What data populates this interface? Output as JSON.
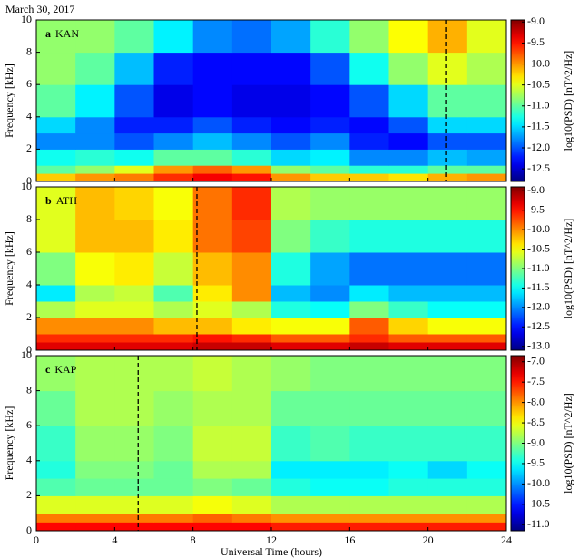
{
  "chart_data": [
    {
      "type": "heatmap",
      "title": "March 30, 2017",
      "panel_letter": "a",
      "station": "KAN",
      "ylabel": "Frequency [kHz]",
      "colorbar_label": "log10(PSD) [nT^2/Hz]",
      "colormap": "jet",
      "xbins": [
        0,
        2,
        4,
        6,
        8,
        10,
        12,
        14,
        16,
        18,
        20,
        22,
        24
      ],
      "ybins": [
        0,
        0.5,
        1,
        2,
        3,
        4,
        6,
        8,
        10
      ],
      "xlim": [
        0,
        24
      ],
      "ylim": [
        0,
        10
      ],
      "yticks": [
        0,
        2,
        4,
        6,
        8,
        10
      ],
      "clim": [
        -12.8,
        -8.95
      ],
      "cticks": [
        {
          "value": -9,
          "label": "-9.0"
        },
        {
          "value": -9.5,
          "label": "-9.5"
        },
        {
          "value": -10,
          "label": "-10.0"
        },
        {
          "value": -10.5,
          "label": "-10.5"
        },
        {
          "value": -11,
          "label": "-11.0"
        },
        {
          "value": -11.5,
          "label": "-11.5"
        },
        {
          "value": -12,
          "label": "-12.0"
        },
        {
          "value": -12.5,
          "label": "-12.5"
        }
      ],
      "marker_x": 20.9,
      "values": [
        [
          -10.2,
          -10.0,
          -9.9,
          -9.6,
          -9.4,
          -9.5,
          -10.0,
          -10.2,
          -10.2,
          -10.3,
          -10.1,
          -10.0
        ],
        [
          -11.0,
          -10.8,
          -10.5,
          -10.0,
          -9.8,
          -10.0,
          -10.8,
          -11.0,
          -11.2,
          -11.2,
          -11.0,
          -11.0
        ],
        [
          -11.3,
          -11.2,
          -11.3,
          -11.0,
          -11.0,
          -11.2,
          -11.5,
          -11.4,
          -11.8,
          -11.8,
          -11.6,
          -11.7
        ],
        [
          -11.8,
          -11.8,
          -12.0,
          -11.8,
          -11.6,
          -11.8,
          -12.0,
          -11.8,
          -12.2,
          -12.3,
          -12.0,
          -12.0
        ],
        [
          -11.5,
          -11.8,
          -12.2,
          -12.2,
          -12.0,
          -12.2,
          -12.3,
          -12.2,
          -12.3,
          -12.0,
          -11.5,
          -11.5
        ],
        [
          -11.0,
          -11.4,
          -12.0,
          -12.4,
          -12.3,
          -12.4,
          -12.4,
          -12.3,
          -12.0,
          -11.5,
          -11.0,
          -11.0
        ],
        [
          -10.8,
          -11.0,
          -11.6,
          -12.2,
          -12.3,
          -12.3,
          -12.3,
          -12.0,
          -11.3,
          -10.8,
          -10.5,
          -10.7
        ],
        [
          -10.8,
          -10.8,
          -11.0,
          -11.4,
          -11.8,
          -11.9,
          -11.7,
          -11.2,
          -10.8,
          -10.4,
          -10.1,
          -10.5
        ]
      ]
    },
    {
      "type": "heatmap",
      "panel_letter": "b",
      "station": "ATH",
      "ylabel": "Frequency [kHz]",
      "colorbar_label": "log10(PSD) [nT^2/Hz]",
      "colormap": "jet",
      "xbins": [
        0,
        2,
        4,
        6,
        8,
        10,
        12,
        14,
        16,
        18,
        20,
        22,
        24
      ],
      "ybins": [
        0,
        0.5,
        1,
        2,
        3,
        4,
        6,
        8,
        10
      ],
      "xlim": [
        0,
        24
      ],
      "ylim": [
        0,
        10
      ],
      "yticks": [
        0,
        2,
        4,
        6,
        8,
        10
      ],
      "clim": [
        -13.1,
        -8.9
      ],
      "cticks": [
        {
          "value": -9,
          "label": "-9.0"
        },
        {
          "value": -9.5,
          "label": "-9.5"
        },
        {
          "value": -10,
          "label": "-10.0"
        },
        {
          "value": -10.5,
          "label": "-10.5"
        },
        {
          "value": -11,
          "label": "-11.0"
        },
        {
          "value": -11.5,
          "label": "-11.5"
        },
        {
          "value": -12,
          "label": "-12.0"
        },
        {
          "value": -12.5,
          "label": "-12.5"
        },
        {
          "value": -13,
          "label": "-13.0"
        }
      ],
      "marker_x": 8.2,
      "values": [
        [
          -9.3,
          -9.3,
          -9.3,
          -9.3,
          -9.2,
          -9.2,
          -9.3,
          -9.3,
          -9.2,
          -9.3,
          -9.3,
          -9.3
        ],
        [
          -9.6,
          -9.6,
          -9.6,
          -9.6,
          -9.5,
          -9.6,
          -9.8,
          -9.8,
          -9.6,
          -9.8,
          -9.8,
          -9.8
        ],
        [
          -10.0,
          -10.0,
          -10.0,
          -10.2,
          -10.2,
          -10.4,
          -10.5,
          -10.5,
          -9.8,
          -10.3,
          -10.5,
          -10.5
        ],
        [
          -10.8,
          -10.6,
          -10.6,
          -10.8,
          -10.6,
          -10.8,
          -11.4,
          -11.5,
          -11.0,
          -11.3,
          -11.5,
          -11.5
        ],
        [
          -11.6,
          -10.8,
          -10.7,
          -11.2,
          -10.4,
          -10.0,
          -11.8,
          -12.0,
          -11.6,
          -11.8,
          -11.8,
          -11.8
        ],
        [
          -11.0,
          -10.5,
          -10.4,
          -10.7,
          -10.2,
          -10.0,
          -11.4,
          -11.9,
          -12.1,
          -12.1,
          -12.1,
          -12.1
        ],
        [
          -10.6,
          -10.2,
          -10.2,
          -10.4,
          -9.9,
          -9.7,
          -11.0,
          -11.3,
          -11.4,
          -11.4,
          -11.4,
          -11.4
        ],
        [
          -10.6,
          -10.2,
          -10.3,
          -10.5,
          -9.9,
          -9.6,
          -10.8,
          -10.9,
          -10.9,
          -10.9,
          -10.9,
          -10.9
        ]
      ]
    },
    {
      "type": "heatmap",
      "panel_letter": "c",
      "station": "KAP",
      "ylabel": "Frequency [kHz]",
      "colorbar_label": "log10(PSD) [nT^2/Hz]",
      "colormap": "jet",
      "xlabel": "Universal Time (hours)",
      "xticks": [
        0,
        4,
        8,
        12,
        16,
        20,
        24
      ],
      "xbins": [
        0,
        2,
        4,
        6,
        8,
        10,
        12,
        14,
        16,
        18,
        20,
        22,
        24
      ],
      "ybins": [
        0,
        0.5,
        1,
        2,
        3,
        4,
        6,
        8,
        10
      ],
      "xlim": [
        0,
        24
      ],
      "ylim": [
        0,
        10
      ],
      "yticks": [
        0,
        2,
        4,
        6,
        8,
        10
      ],
      "clim": [
        -11.15,
        -6.85
      ],
      "cticks": [
        {
          "value": -7,
          "label": "-7.0"
        },
        {
          "value": -7.5,
          "label": "-7.5"
        },
        {
          "value": -8,
          "label": "-8.0"
        },
        {
          "value": -8.5,
          "label": "-8.5"
        },
        {
          "value": -9,
          "label": "-9.0"
        },
        {
          "value": -9.5,
          "label": "-9.5"
        },
        {
          "value": -10,
          "label": "-10.0"
        },
        {
          "value": -10.5,
          "label": "-10.5"
        },
        {
          "value": -11,
          "label": "-11.0"
        }
      ],
      "marker_x": 5.2,
      "values": [
        [
          -7.4,
          -7.4,
          -7.4,
          -7.4,
          -7.4,
          -7.4,
          -7.5,
          -7.5,
          -7.5,
          -7.5,
          -7.5,
          -7.5
        ],
        [
          -7.9,
          -7.9,
          -7.9,
          -7.9,
          -7.8,
          -7.9,
          -8.0,
          -8.0,
          -8.0,
          -8.0,
          -8.0,
          -8.0
        ],
        [
          -8.6,
          -8.6,
          -8.6,
          -8.6,
          -8.5,
          -8.6,
          -8.8,
          -8.8,
          -8.8,
          -8.8,
          -8.8,
          -8.8
        ],
        [
          -9.2,
          -9.1,
          -9.1,
          -9.1,
          -9.0,
          -9.1,
          -9.4,
          -9.5,
          -9.5,
          -9.4,
          -9.4,
          -9.4
        ],
        [
          -9.4,
          -9.0,
          -9.0,
          -9.1,
          -8.8,
          -8.8,
          -9.6,
          -9.6,
          -9.6,
          -9.5,
          -9.7,
          -9.5
        ],
        [
          -9.3,
          -8.9,
          -8.9,
          -9.0,
          -8.7,
          -8.7,
          -9.3,
          -9.2,
          -9.3,
          -9.3,
          -9.3,
          -9.3
        ],
        [
          -9.1,
          -8.8,
          -8.8,
          -8.9,
          -8.8,
          -8.8,
          -9.1,
          -9.1,
          -9.1,
          -9.1,
          -9.1,
          -9.1
        ],
        [
          -8.9,
          -8.8,
          -8.8,
          -8.8,
          -8.7,
          -8.8,
          -8.9,
          -9.0,
          -9.0,
          -9.0,
          -9.0,
          -9.0
        ]
      ]
    }
  ]
}
